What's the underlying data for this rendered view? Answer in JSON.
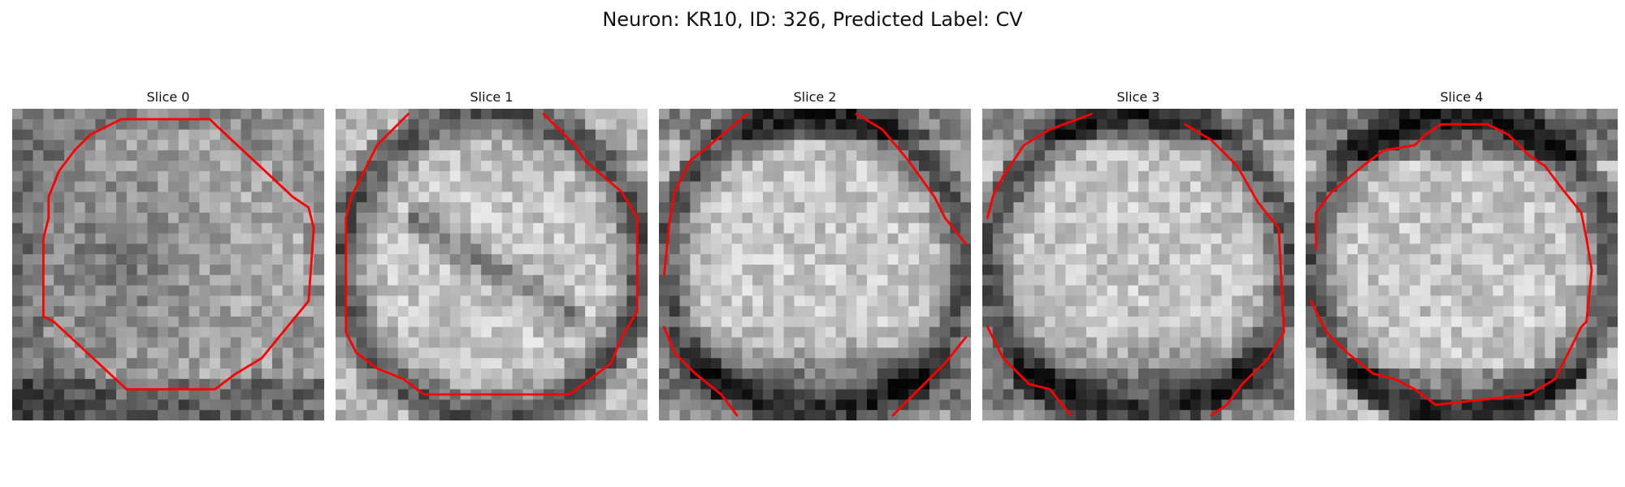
{
  "figure": {
    "title": "Neuron: KR10, ID: 326, Predicted Label: CV",
    "contour_color": "#ff0000",
    "colormap": "gray",
    "grid_size": 30,
    "slices": [
      {
        "title": "Slice 0",
        "pattern": "dim-blob",
        "contour_segments": [
          [
            [
              3.5,
              10.5
            ],
            [
              3.0,
              12.5
            ],
            [
              3.0,
              20.0
            ],
            [
              4.0,
              20.5
            ],
            [
              11.0,
              27.0
            ],
            [
              19.5,
              27.0
            ],
            [
              21.5,
              25.5
            ],
            [
              24.0,
              24.0
            ],
            [
              28.5,
              18.5
            ],
            [
              29.0,
              11.5
            ],
            [
              28.5,
              9.5
            ],
            [
              27.0,
              8.5
            ],
            [
              19.5,
              1.5
            ],
            [
              19.0,
              1.0
            ],
            [
              10.5,
              1.0
            ],
            [
              7.5,
              2.5
            ],
            [
              6.0,
              4.0
            ],
            [
              4.5,
              6.0
            ],
            [
              3.5,
              8.5
            ],
            [
              3.5,
              10.5
            ]
          ]
        ]
      },
      {
        "title": "Slice 1",
        "pattern": "ring-fissure",
        "contour_segments": [
          [
            [
              7.0,
              0.5
            ],
            [
              4.0,
              3.5
            ],
            [
              3.0,
              5.5
            ],
            [
              1.5,
              8.5
            ],
            [
              1.0,
              10.5
            ],
            [
              1.0,
              21.5
            ],
            [
              2.0,
              23.5
            ],
            [
              4.0,
              25.0
            ],
            [
              6.5,
              26.0
            ],
            [
              8.5,
              27.5
            ],
            [
              22.5,
              27.5
            ],
            [
              24.5,
              26.0
            ],
            [
              26.5,
              24.5
            ],
            [
              27.5,
              22.0
            ],
            [
              29.0,
              19.5
            ],
            [
              29.0,
              10.5
            ],
            [
              27.5,
              8.0
            ],
            [
              24.0,
              5.0
            ],
            [
              23.0,
              3.5
            ],
            [
              20.0,
              0.5
            ]
          ]
        ]
      },
      {
        "title": "Slice 2",
        "pattern": "ring-dark-bottom",
        "contour_segments": [
          [
            [
              8.5,
              0.5
            ],
            [
              5.5,
              3.0
            ],
            [
              3.0,
              5.0
            ],
            [
              1.5,
              8.0
            ],
            [
              1.0,
              11.0
            ],
            [
              0.5,
              16.0
            ]
          ],
          [
            [
              19.0,
              0.5
            ],
            [
              21.5,
              2.0
            ],
            [
              24.0,
              5.0
            ],
            [
              26.5,
              8.5
            ],
            [
              27.5,
              10.5
            ],
            [
              29.5,
              13.0
            ]
          ],
          [
            [
              0.5,
              21.0
            ],
            [
              1.5,
              23.5
            ],
            [
              3.5,
              25.5
            ],
            [
              6.0,
              27.5
            ],
            [
              7.5,
              29.5
            ]
          ],
          [
            [
              29.5,
              22.0
            ],
            [
              27.5,
              24.5
            ],
            [
              25.5,
              26.5
            ],
            [
              23.5,
              28.5
            ],
            [
              22.5,
              29.5
            ]
          ]
        ]
      },
      {
        "title": "Slice 3",
        "pattern": "ring-dark-bottom",
        "contour_segments": [
          [
            [
              10.5,
              0.5
            ],
            [
              6.5,
              2.0
            ],
            [
              4.0,
              3.5
            ],
            [
              2.0,
              6.5
            ],
            [
              1.0,
              8.5
            ],
            [
              0.5,
              10.5
            ]
          ],
          [
            [
              19.5,
              1.5
            ],
            [
              22.0,
              3.0
            ],
            [
              24.5,
              5.5
            ],
            [
              26.5,
              9.0
            ],
            [
              28.5,
              11.5
            ],
            [
              29.0,
              21.5
            ],
            [
              27.5,
              24.0
            ],
            [
              25.0,
              26.5
            ],
            [
              23.5,
              28.5
            ],
            [
              22.0,
              29.5
            ]
          ],
          [
            [
              0.5,
              21.0
            ],
            [
              2.0,
              24.0
            ],
            [
              4.5,
              26.5
            ],
            [
              6.5,
              27.0
            ],
            [
              8.5,
              29.5
            ]
          ]
        ]
      },
      {
        "title": "Slice 4",
        "pattern": "ring-dark-top",
        "contour_segments": [
          [
            [
              1.0,
              13.5
            ],
            [
              1.0,
              10.0
            ],
            [
              2.5,
              8.0
            ],
            [
              5.5,
              5.5
            ],
            [
              7.5,
              4.0
            ],
            [
              10.5,
              3.5
            ],
            [
              11.5,
              2.5
            ],
            [
              13.0,
              1.5
            ],
            [
              17.5,
              1.5
            ],
            [
              19.5,
              2.5
            ],
            [
              21.5,
              4.5
            ],
            [
              23.0,
              5.5
            ],
            [
              24.5,
              7.5
            ],
            [
              26.5,
              10.0
            ],
            [
              27.0,
              12.5
            ],
            [
              27.5,
              15.5
            ],
            [
              27.0,
              20.5
            ],
            [
              26.5,
              21.0
            ],
            [
              25.0,
              24.0
            ],
            [
              24.0,
              26.0
            ],
            [
              21.5,
              27.5
            ],
            [
              12.5,
              28.5
            ],
            [
              10.5,
              27.0
            ],
            [
              8.5,
              26.0
            ],
            [
              6.5,
              25.5
            ],
            [
              4.0,
              23.5
            ],
            [
              2.0,
              21.5
            ],
            [
              1.0,
              19.5
            ],
            [
              0.5,
              18.5
            ]
          ]
        ]
      }
    ]
  }
}
